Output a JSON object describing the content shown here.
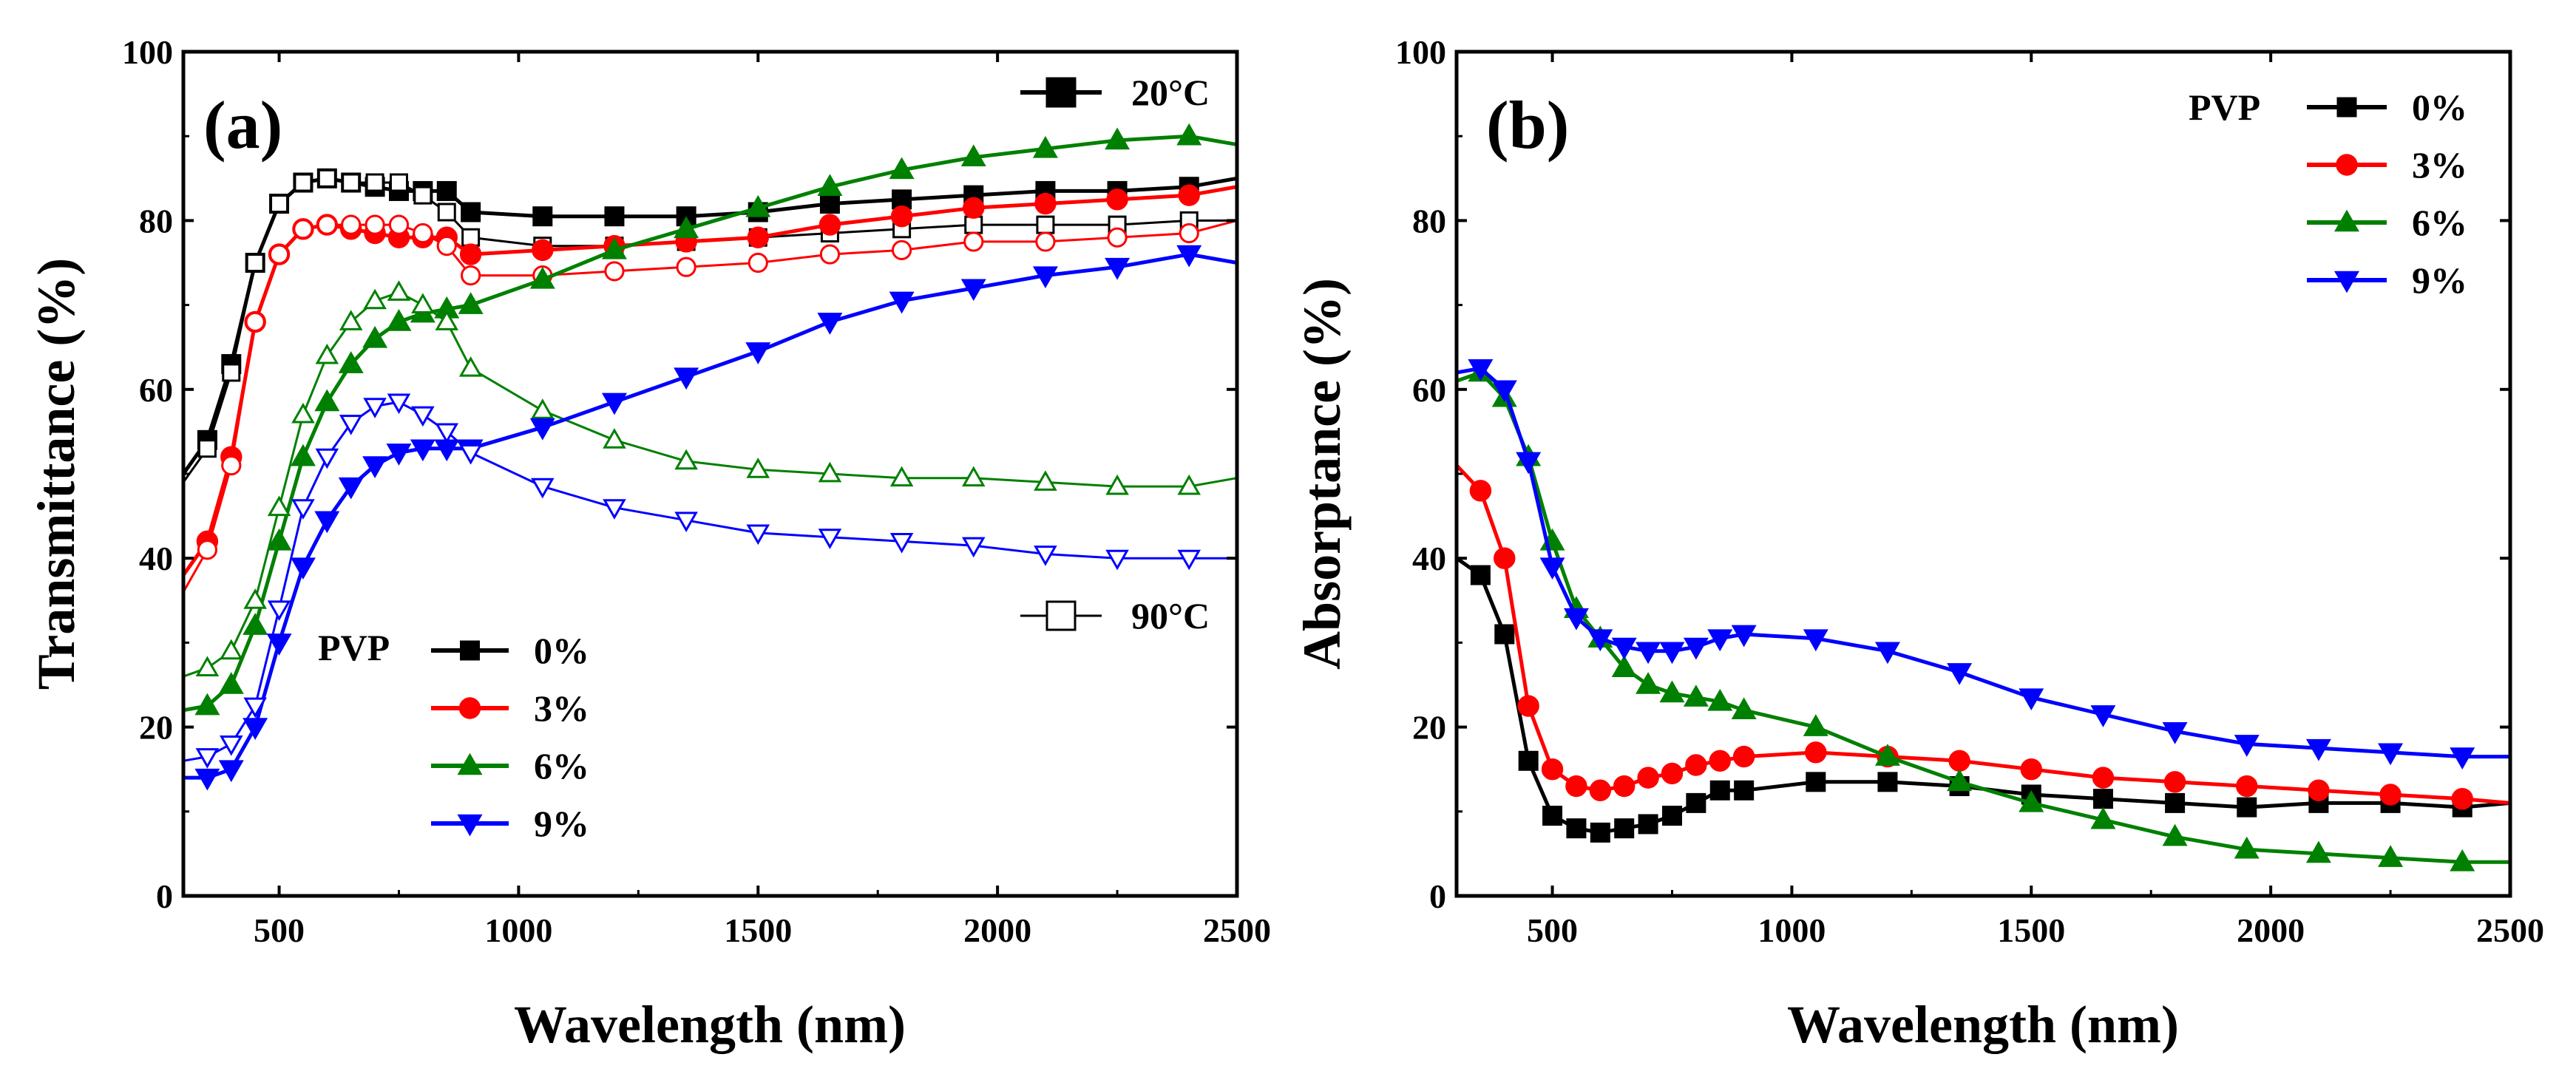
{
  "chart_data": [
    {
      "panel": "(a)",
      "type": "line",
      "xlabel": "Wavelength (nm)",
      "ylabel": "Transmittance (%)",
      "xlim": [
        300,
        2500
      ],
      "ylim": [
        0,
        100
      ],
      "xticks": [
        500,
        1000,
        1500,
        2000,
        2500
      ],
      "xtick_labels": [
        "500",
        "1000",
        "1500",
        "2000",
        "2500"
      ],
      "yticks": [
        0,
        20,
        40,
        60,
        80,
        100
      ],
      "ytick_labels": [
        "0",
        "20",
        "40",
        "60",
        "80",
        "100"
      ],
      "legend_series_title": "PVP",
      "legend_temperature": [
        {
          "label": "20°C",
          "marker": "square-filled"
        },
        {
          "label": "90°C",
          "marker": "square-open"
        }
      ],
      "series": [
        {
          "name": "0%",
          "temperature": "20°C",
          "color": "#000000",
          "marker": "square",
          "filled": true,
          "x": [
            300,
            350,
            400,
            450,
            500,
            550,
            600,
            650,
            700,
            750,
            800,
            850,
            900,
            1050,
            1200,
            1350,
            1500,
            1650,
            1800,
            1950,
            2100,
            2250,
            2400,
            2500
          ],
          "y": [
            50,
            54,
            63,
            75,
            82,
            84.5,
            85,
            84.5,
            84,
            83.5,
            83.5,
            83.5,
            81,
            80.5,
            80.5,
            80.5,
            81,
            82,
            82.5,
            83,
            83.5,
            83.5,
            84,
            85
          ]
        },
        {
          "name": "0%",
          "temperature": "90°C",
          "color": "#000000",
          "marker": "square",
          "filled": false,
          "x": [
            300,
            350,
            400,
            450,
            500,
            550,
            600,
            650,
            700,
            750,
            800,
            850,
            900,
            1050,
            1200,
            1350,
            1500,
            1650,
            1800,
            1950,
            2100,
            2250,
            2400,
            2500
          ],
          "y": [
            49,
            53,
            62,
            75,
            82,
            84.5,
            85,
            84.5,
            84.5,
            84.5,
            83,
            81,
            78,
            77,
            77,
            77.5,
            78,
            78.5,
            79,
            79.5,
            79.5,
            79.5,
            80,
            80
          ]
        },
        {
          "name": "3%",
          "temperature": "20°C",
          "color": "#ff0000",
          "marker": "circle",
          "filled": true,
          "x": [
            300,
            350,
            400,
            450,
            500,
            550,
            600,
            650,
            700,
            750,
            800,
            850,
            900,
            1050,
            1200,
            1350,
            1500,
            1650,
            1800,
            1950,
            2100,
            2250,
            2400,
            2500
          ],
          "y": [
            38,
            42,
            52,
            68,
            76,
            79,
            79.5,
            79,
            78.5,
            78,
            78,
            78,
            76,
            76.5,
            77,
            77.5,
            78,
            79.5,
            80.5,
            81.5,
            82,
            82.5,
            83,
            84
          ]
        },
        {
          "name": "3%",
          "temperature": "90°C",
          "color": "#ff0000",
          "marker": "circle",
          "filled": false,
          "x": [
            300,
            350,
            400,
            450,
            500,
            550,
            600,
            650,
            700,
            750,
            800,
            850,
            900,
            1050,
            1200,
            1350,
            1500,
            1650,
            1800,
            1950,
            2100,
            2250,
            2400,
            2500
          ],
          "y": [
            36,
            41,
            51,
            68,
            76,
            79,
            79.5,
            79.5,
            79.5,
            79.5,
            78.5,
            77,
            73.5,
            73.5,
            74,
            74.5,
            75,
            76,
            76.5,
            77.5,
            77.5,
            78,
            78.5,
            80
          ]
        },
        {
          "name": "6%",
          "temperature": "20°C",
          "color": "#008000",
          "marker": "triangle-up",
          "filled": true,
          "x": [
            300,
            350,
            400,
            450,
            500,
            550,
            600,
            650,
            700,
            750,
            800,
            850,
            900,
            1050,
            1200,
            1350,
            1500,
            1650,
            1800,
            1950,
            2100,
            2250,
            2400,
            2500
          ],
          "y": [
            22,
            22.5,
            25,
            32,
            42,
            52,
            58.5,
            63,
            66,
            68,
            69,
            69.5,
            70,
            73,
            76.5,
            79,
            81.5,
            84,
            86,
            87.5,
            88.5,
            89.5,
            90,
            89
          ]
        },
        {
          "name": "6%",
          "temperature": "90°C",
          "color": "#008000",
          "marker": "triangle-up",
          "filled": false,
          "x": [
            300,
            350,
            400,
            450,
            500,
            550,
            600,
            650,
            700,
            750,
            800,
            850,
            900,
            1050,
            1200,
            1350,
            1500,
            1650,
            1800,
            1950,
            2100,
            2250,
            2400,
            2500
          ],
          "y": [
            26,
            27,
            29,
            35,
            46,
            57,
            64,
            68,
            70.5,
            71.5,
            70,
            68,
            62.5,
            57.5,
            54,
            51.5,
            50.5,
            50,
            49.5,
            49.5,
            49,
            48.5,
            48.5,
            49.5
          ]
        },
        {
          "name": "9%",
          "temperature": "20°C",
          "color": "#0000ff",
          "marker": "triangle-down",
          "filled": true,
          "x": [
            300,
            350,
            400,
            450,
            500,
            550,
            600,
            650,
            700,
            750,
            800,
            850,
            900,
            1050,
            1200,
            1350,
            1500,
            1650,
            1800,
            1950,
            2100,
            2250,
            2400,
            2500
          ],
          "y": [
            14,
            14,
            15,
            20,
            30,
            39,
            44.5,
            48.5,
            51,
            52.5,
            53,
            53,
            53,
            55.5,
            58.5,
            61.5,
            64.5,
            68,
            70.5,
            72,
            73.5,
            74.5,
            76,
            75
          ]
        },
        {
          "name": "9%",
          "temperature": "90°C",
          "color": "#0000ff",
          "marker": "triangle-down",
          "filled": false,
          "x": [
            300,
            350,
            400,
            450,
            500,
            550,
            600,
            650,
            700,
            750,
            800,
            850,
            900,
            1050,
            1200,
            1350,
            1500,
            1650,
            1800,
            1950,
            2100,
            2250,
            2400,
            2500
          ],
          "y": [
            16,
            16.5,
            18,
            22.5,
            34,
            46,
            52,
            56,
            58,
            58.5,
            57,
            55,
            52.5,
            48.5,
            46,
            44.5,
            43,
            42.5,
            42,
            41.5,
            40.5,
            40,
            40,
            40
          ]
        }
      ]
    },
    {
      "panel": "(b)",
      "type": "line",
      "xlabel": "Wavelength (nm)",
      "ylabel": "Absorptance (%)",
      "xlim": [
        300,
        2500
      ],
      "ylim": [
        0,
        100
      ],
      "xticks": [
        500,
        1000,
        1500,
        2000,
        2500
      ],
      "xtick_labels": [
        "500",
        "1000",
        "1500",
        "2000",
        "2500"
      ],
      "yticks": [
        0,
        20,
        40,
        60,
        80,
        100
      ],
      "ytick_labels": [
        "0",
        "20",
        "40",
        "60",
        "80",
        "100"
      ],
      "legend_series_title": "PVP",
      "series": [
        {
          "name": "0%",
          "color": "#000000",
          "marker": "square",
          "filled": true,
          "x": [
            300,
            350,
            400,
            450,
            500,
            550,
            600,
            650,
            700,
            750,
            800,
            850,
            900,
            1050,
            1200,
            1350,
            1500,
            1650,
            1800,
            1950,
            2100,
            2250,
            2400,
            2500
          ],
          "y": [
            40,
            38,
            31,
            16,
            9.5,
            8,
            7.5,
            8,
            8.5,
            9.5,
            11,
            12.5,
            12.5,
            13.5,
            13.5,
            13,
            12,
            11.5,
            11,
            10.5,
            11,
            11,
            10.5,
            11
          ]
        },
        {
          "name": "3%",
          "color": "#ff0000",
          "marker": "circle",
          "filled": true,
          "x": [
            300,
            350,
            400,
            450,
            500,
            550,
            600,
            650,
            700,
            750,
            800,
            850,
            900,
            1050,
            1200,
            1350,
            1500,
            1650,
            1800,
            1950,
            2100,
            2250,
            2400,
            2500
          ],
          "y": [
            51,
            48,
            40,
            22.5,
            15,
            13,
            12.5,
            13,
            14,
            14.5,
            15.5,
            16,
            16.5,
            17,
            16.5,
            16,
            15,
            14,
            13.5,
            13,
            12.5,
            12,
            11.5,
            11
          ]
        },
        {
          "name": "6%",
          "color": "#008000",
          "marker": "triangle-up",
          "filled": true,
          "x": [
            300,
            350,
            400,
            450,
            500,
            550,
            600,
            650,
            700,
            750,
            800,
            850,
            900,
            1050,
            1200,
            1350,
            1500,
            1650,
            1800,
            1950,
            2100,
            2250,
            2400,
            2500
          ],
          "y": [
            61,
            62,
            59,
            52,
            42,
            34,
            30.5,
            27,
            25,
            24,
            23.5,
            23,
            22,
            20,
            16.5,
            13.5,
            11,
            9,
            7,
            5.5,
            5,
            4.5,
            4,
            4
          ]
        },
        {
          "name": "9%",
          "color": "#0000ff",
          "marker": "triangle-down",
          "filled": true,
          "x": [
            300,
            350,
            400,
            450,
            500,
            550,
            600,
            650,
            700,
            750,
            800,
            850,
            900,
            1050,
            1200,
            1350,
            1500,
            1650,
            1800,
            1950,
            2100,
            2250,
            2400,
            2500
          ],
          "y": [
            62,
            62.5,
            60,
            51.5,
            39,
            33,
            30.5,
            29.5,
            29,
            29,
            29.5,
            30.5,
            31,
            30.5,
            29,
            26.5,
            23.5,
            21.5,
            19.5,
            18,
            17.5,
            17,
            16.5,
            16.5
          ]
        }
      ]
    }
  ]
}
